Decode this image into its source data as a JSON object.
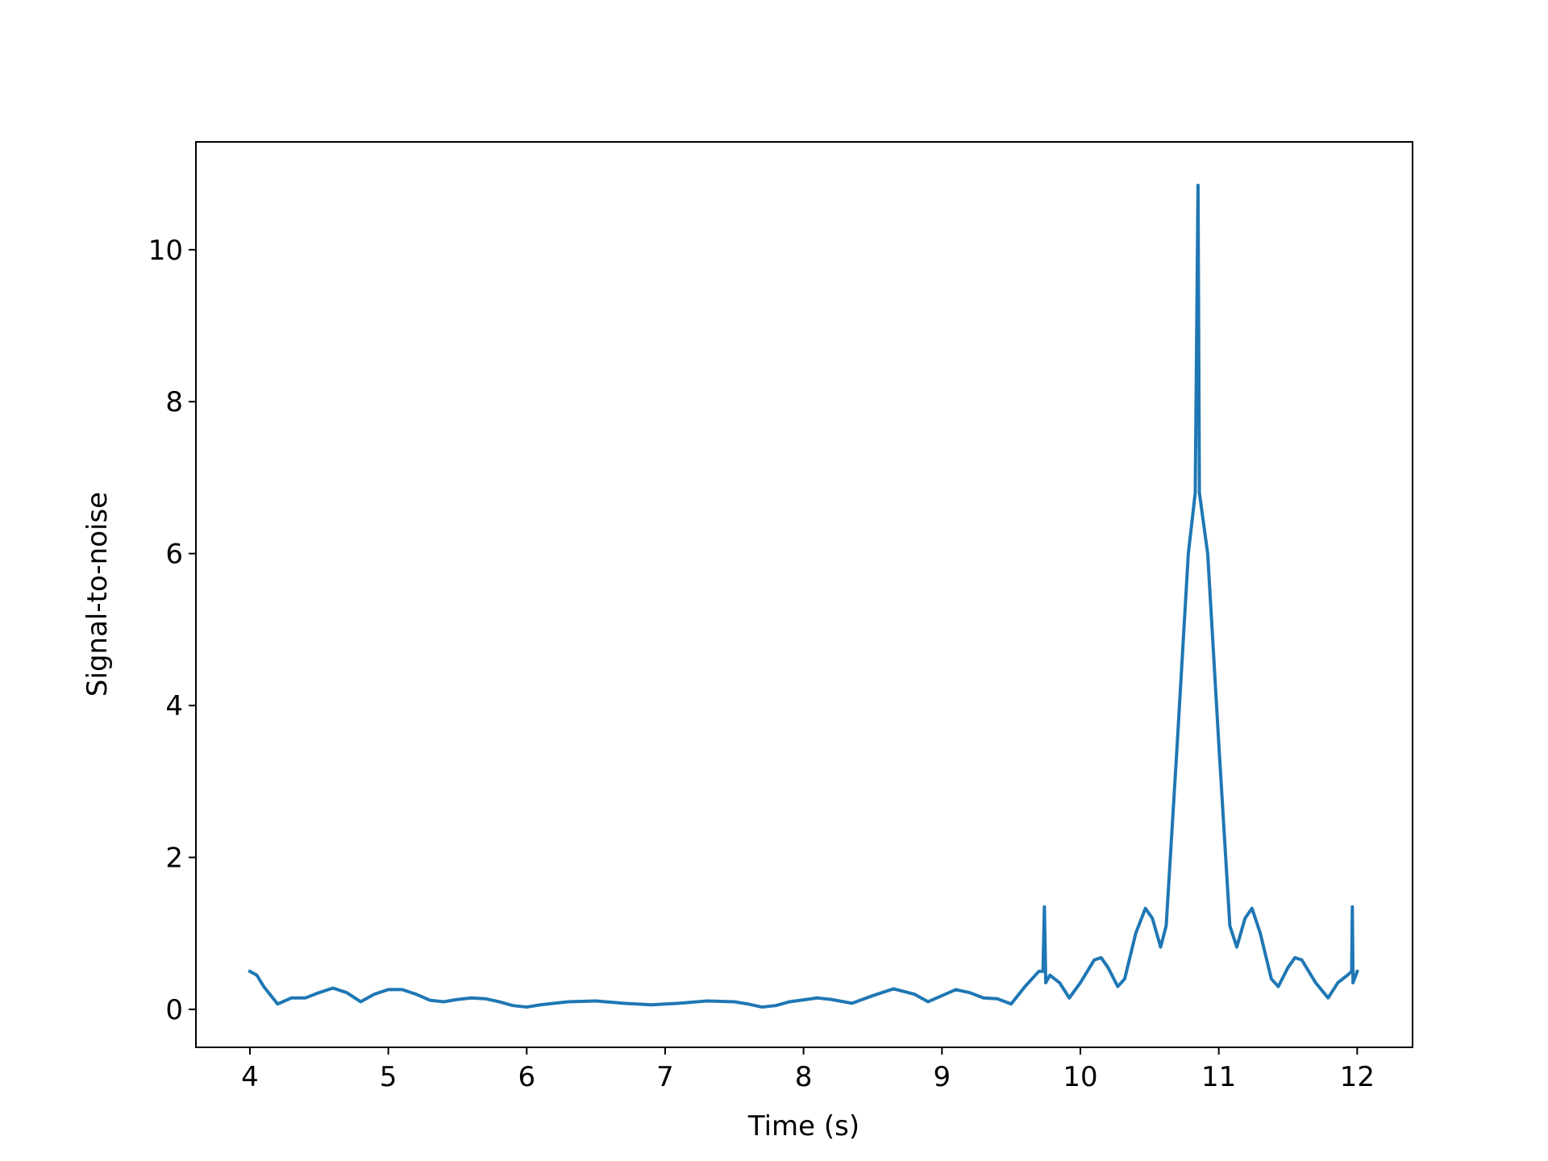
{
  "chart_data": {
    "type": "line",
    "xlabel": "Time (s)",
    "ylabel": "Signal-to-noise",
    "xlim": [
      3.61,
      12.4
    ],
    "ylim": [
      -0.5,
      11.42
    ],
    "xticks": [
      4,
      5,
      6,
      7,
      8,
      9,
      10,
      11,
      12
    ],
    "yticks": [
      0,
      2,
      4,
      6,
      8,
      10
    ],
    "series": [
      {
        "color": "#1f77b4",
        "x": [
          4,
          4.05,
          4.1,
          4.2,
          4.3,
          4.4,
          4.5,
          4.6,
          4.7,
          4.8,
          4.9,
          5.0,
          5.1,
          5.2,
          5.3,
          5.4,
          5.5,
          5.6,
          5.7,
          5.8,
          5.9,
          6.0,
          6.1,
          6.3,
          6.5,
          6.7,
          6.9,
          7.1,
          7.3,
          7.5,
          7.6,
          7.7,
          7.8,
          7.9,
          8.1,
          8.2,
          8.35,
          8.5,
          8.65,
          8.8,
          8.9,
          9.0,
          9.1,
          9.2,
          9.3,
          9.4,
          9.5,
          9.6,
          9.7,
          9.73,
          9.74,
          9.75,
          9.78,
          9.85,
          9.92,
          10.0,
          10.1,
          10.15,
          10.2,
          10.27,
          10.32,
          10.4,
          10.47,
          10.52,
          10.58,
          10.62,
          10.7,
          10.78,
          10.83,
          10.85,
          10.86,
          10.92,
          11.0,
          11.08,
          11.13,
          11.19,
          11.24,
          11.3,
          11.38,
          11.43,
          11.5,
          11.55,
          11.6,
          11.7,
          11.79,
          11.86,
          11.93,
          11.96,
          11.965,
          11.97,
          12.0
        ],
        "values": [
          0.5,
          0.45,
          0.3,
          0.07,
          0.15,
          0.15,
          0.22,
          0.28,
          0.22,
          0.1,
          0.2,
          0.26,
          0.26,
          0.2,
          0.12,
          0.1,
          0.13,
          0.15,
          0.14,
          0.1,
          0.05,
          0.03,
          0.06,
          0.1,
          0.11,
          0.08,
          0.06,
          0.08,
          0.11,
          0.1,
          0.07,
          0.03,
          0.05,
          0.1,
          0.15,
          0.13,
          0.08,
          0.18,
          0.27,
          0.2,
          0.1,
          0.18,
          0.26,
          0.22,
          0.15,
          0.14,
          0.07,
          0.3,
          0.5,
          0.5,
          1.35,
          0.35,
          0.45,
          0.35,
          0.15,
          0.35,
          0.65,
          0.68,
          0.55,
          0.3,
          0.4,
          1.0,
          1.33,
          1.2,
          0.82,
          1.1,
          3.5,
          6.0,
          6.8,
          10.85,
          6.8,
          6.0,
          3.5,
          1.1,
          0.82,
          1.2,
          1.33,
          1.0,
          0.4,
          0.3,
          0.55,
          0.68,
          0.65,
          0.35,
          0.15,
          0.35,
          0.45,
          0.5,
          1.35,
          0.35,
          0.5
        ]
      }
    ]
  }
}
